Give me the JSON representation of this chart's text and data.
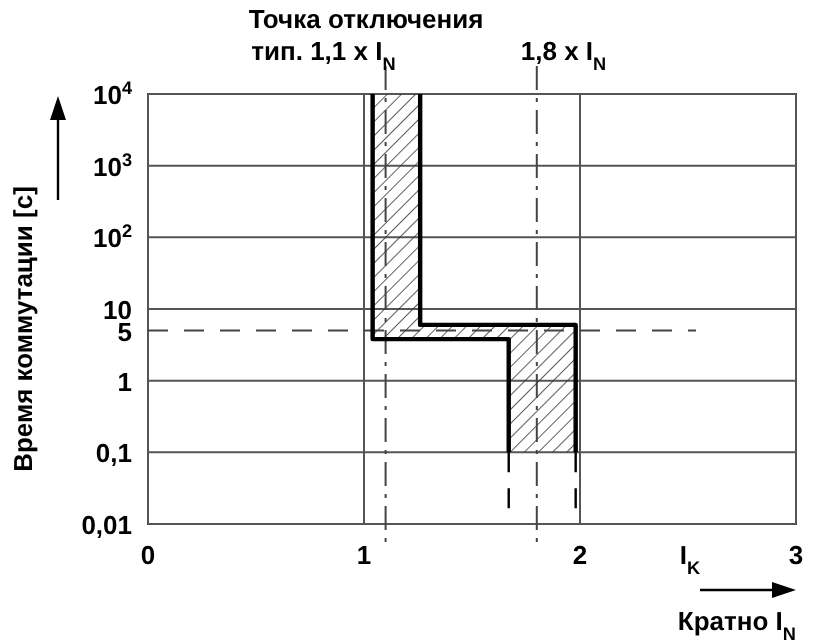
{
  "chart_data": {
    "type": "line",
    "title": "Точка отключения",
    "xlabel": "Кратно I$_{N}$",
    "ylabel": "Время коммутации [с]",
    "log": "y",
    "grid": true,
    "xlim": [
      0,
      3
    ],
    "xticks": [
      0,
      1,
      2,
      3
    ],
    "ylim": [
      0.01,
      10000
    ],
    "yticks": [
      {
        "value": 0.01,
        "label": "0,01"
      },
      {
        "value": 0.1,
        "label": "0,1"
      },
      1,
      10,
      {
        "value": 100,
        "label": "10$^{2}$"
      },
      {
        "value": 1000,
        "label": "10$^{3}$"
      },
      {
        "value": 10000,
        "label": "10$^{4}$"
      }
    ],
    "series": [
      {
        "color": "#000000",
        "line_style": "solid",
        "x": [
          1.04,
          1.04,
          1.67,
          1.67
        ],
        "values": [
          10000,
          3.8,
          3.8,
          0.1
        ]
      },
      {
        "color": "#000000",
        "line_style": "solid",
        "x": [
          1.26,
          1.26,
          1.98,
          1.98
        ],
        "values": [
          10000,
          6,
          6,
          0.1
        ]
      },
      {
        "color": "#000000",
        "line_style": "dashed",
        "x": [
          1.67,
          1.67
        ],
        "values": [
          0.1,
          0.01
        ]
      },
      {
        "color": "#000000",
        "line_style": "dashed",
        "x": [
          1.98,
          1.98
        ],
        "values": [
          0.1,
          0.01
        ]
      }
    ],
    "ref_lines": [
      {
        "axis": "x",
        "value": 1.1,
        "label": "тип. 1,1 x I$_{N}$",
        "line_style": "dashdot"
      },
      {
        "axis": "x",
        "value": 1.8,
        "label": "1,8 x I$_{N}$",
        "line_style": "dashdot"
      },
      {
        "axis": "y",
        "value": 5,
        "label": "5",
        "line_style": "dashed"
      }
    ],
    "annotations": [
      "I$_{K}$"
    ]
  }
}
